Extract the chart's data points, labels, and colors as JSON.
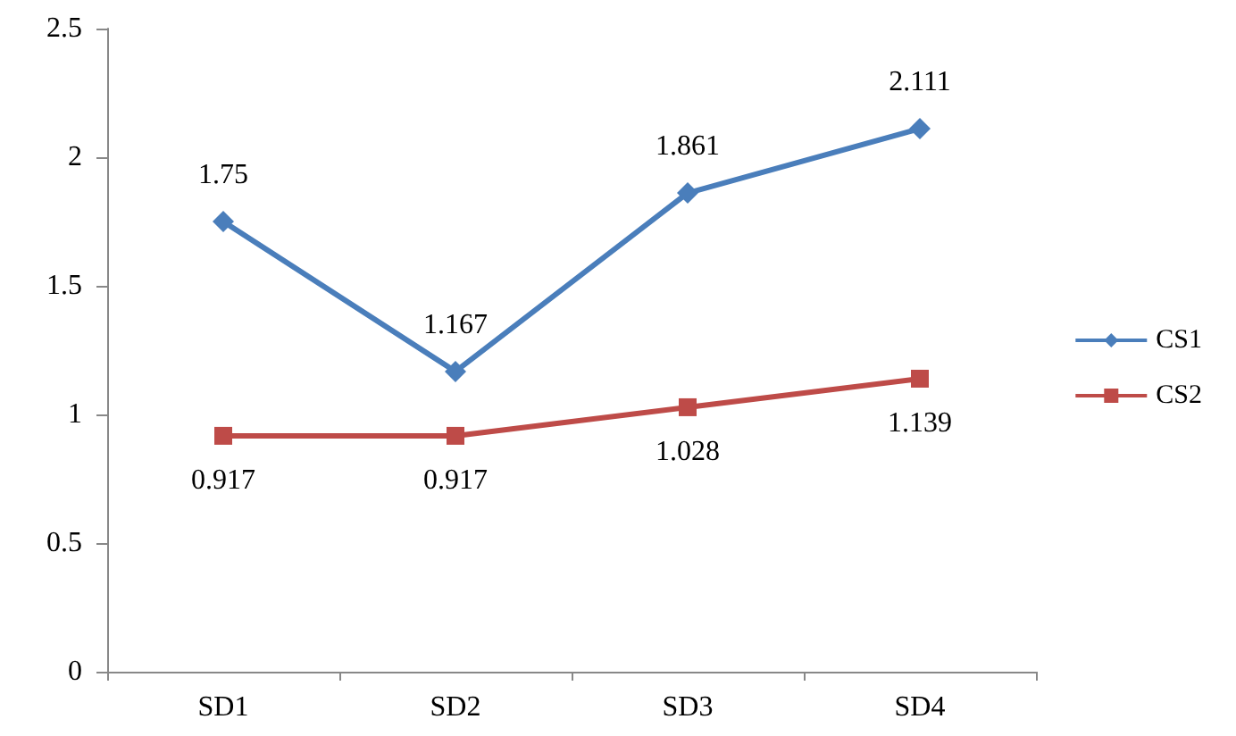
{
  "chart_data": {
    "type": "line",
    "categories": [
      "SD1",
      "SD2",
      "SD3",
      "SD4"
    ],
    "series": [
      {
        "name": "CS1",
        "color": "#4a7ebb",
        "marker": "diamond",
        "values": [
          1.75,
          1.167,
          1.861,
          2.111
        ]
      },
      {
        "name": "CS2",
        "color": "#be4b48",
        "marker": "square",
        "values": [
          0.917,
          0.917,
          1.028,
          1.139
        ]
      }
    ],
    "ylim": [
      0,
      2.5
    ],
    "yticks": [
      0,
      0.5,
      1,
      1.5,
      2,
      2.5
    ],
    "grid": false,
    "legend": "right",
    "data_labels": true
  }
}
